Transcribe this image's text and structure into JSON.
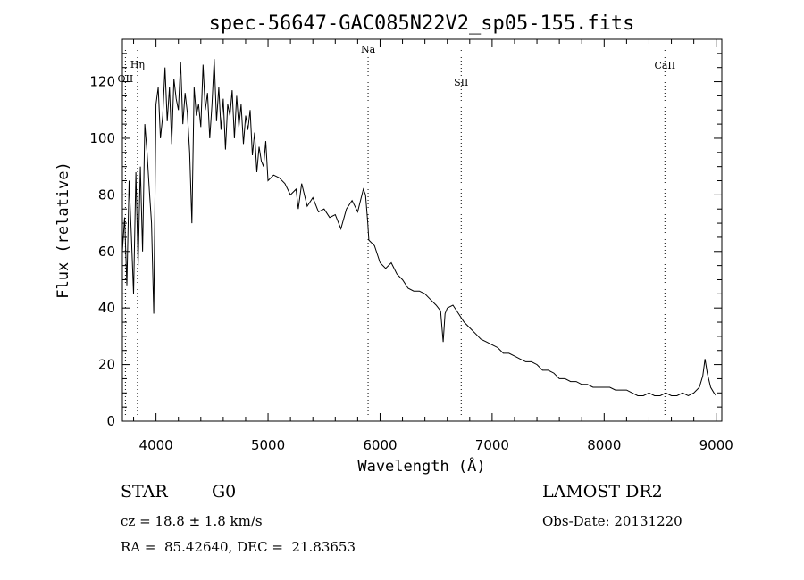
{
  "chart_data": {
    "type": "line",
    "title": "spec-56647-GAC085N22V2_sp05-155.fits",
    "xlabel": "Wavelength (Å)",
    "ylabel": "Flux (relative)",
    "xlim": [
      3700,
      9050
    ],
    "ylim": [
      0,
      135
    ],
    "xticks": [
      4000,
      5000,
      6000,
      7000,
      8000,
      9000
    ],
    "yticks": [
      0,
      20,
      40,
      60,
      80,
      100,
      120
    ],
    "grid": false,
    "series": [
      {
        "x": [
          3700,
          3720,
          3740,
          3760,
          3780,
          3800,
          3820,
          3840,
          3860,
          3880,
          3900,
          3920,
          3940,
          3960,
          3980,
          4000,
          4020,
          4040,
          4060,
          4080,
          4100,
          4120,
          4140,
          4160,
          4180,
          4200,
          4220,
          4240,
          4260,
          4280,
          4300,
          4320,
          4340,
          4360,
          4380,
          4400,
          4420,
          4440,
          4460,
          4480,
          4500,
          4520,
          4540,
          4560,
          4580,
          4600,
          4620,
          4640,
          4660,
          4680,
          4700,
          4720,
          4740,
          4760,
          4780,
          4800,
          4820,
          4840,
          4860,
          4880,
          4900,
          4920,
          4940,
          4960,
          4980,
          5000,
          5050,
          5100,
          5150,
          5200,
          5250,
          5270,
          5300,
          5350,
          5400,
          5450,
          5500,
          5550,
          5600,
          5650,
          5700,
          5750,
          5800,
          5850,
          5870,
          5890,
          5900,
          5950,
          6000,
          6050,
          6100,
          6150,
          6200,
          6250,
          6300,
          6350,
          6400,
          6450,
          6500,
          6540,
          6563,
          6580,
          6600,
          6650,
          6700,
          6750,
          6800,
          6850,
          6900,
          6950,
          7000,
          7050,
          7100,
          7150,
          7200,
          7250,
          7300,
          7350,
          7400,
          7450,
          7500,
          7550,
          7600,
          7650,
          7700,
          7750,
          7800,
          7850,
          7900,
          7950,
          8000,
          8050,
          8100,
          8150,
          8200,
          8250,
          8300,
          8350,
          8400,
          8450,
          8500,
          8550,
          8600,
          8650,
          8700,
          8750,
          8800,
          8850,
          8880,
          8900,
          8920,
          8950,
          8980,
          9000
        ],
        "y": [
          60,
          72,
          48,
          85,
          66,
          45,
          88,
          55,
          90,
          60,
          105,
          95,
          82,
          70,
          38,
          112,
          118,
          100,
          108,
          125,
          106,
          118,
          98,
          121,
          114,
          110,
          127,
          105,
          116,
          109,
          95,
          70,
          118,
          108,
          112,
          104,
          126,
          110,
          116,
          100,
          112,
          128,
          106,
          118,
          103,
          114,
          96,
          112,
          108,
          117,
          100,
          115,
          104,
          112,
          98,
          108,
          103,
          110,
          94,
          102,
          88,
          97,
          92,
          90,
          99,
          85,
          87,
          86,
          84,
          80,
          82,
          75,
          84,
          76,
          79,
          74,
          75,
          72,
          73,
          68,
          75,
          78,
          74,
          82,
          80,
          70,
          64,
          62,
          56,
          54,
          56,
          52,
          50,
          47,
          46,
          46,
          45,
          43,
          41,
          39,
          28,
          38,
          40,
          41,
          38,
          35,
          33,
          31,
          29,
          28,
          27,
          26,
          24,
          24,
          23,
          22,
          21,
          21,
          20,
          18,
          18,
          17,
          15,
          15,
          14,
          14,
          13,
          13,
          12,
          12,
          12,
          12,
          11,
          11,
          11,
          10,
          9,
          9,
          10,
          9,
          9,
          10,
          9,
          9,
          10,
          9,
          10,
          12,
          16,
          22,
          17,
          12,
          10,
          9
        ]
      }
    ],
    "line_markers": [
      {
        "label": "OII",
        "x": 3727
      },
      {
        "label": "Hη",
        "x": 3835
      },
      {
        "label": "Na",
        "x": 5893
      },
      {
        "label": "SII",
        "x": 6724
      },
      {
        "label": "CaII",
        "x": 8542
      }
    ]
  },
  "info": {
    "object_type": "STAR",
    "subclass": "G0",
    "survey": "LAMOST DR2",
    "cz": "cz = 18.8 ± 1.8 km/s",
    "obs_date": "Obs-Date: 20131220",
    "radec": "RA =  85.42640, DEC =  21.83653"
  }
}
